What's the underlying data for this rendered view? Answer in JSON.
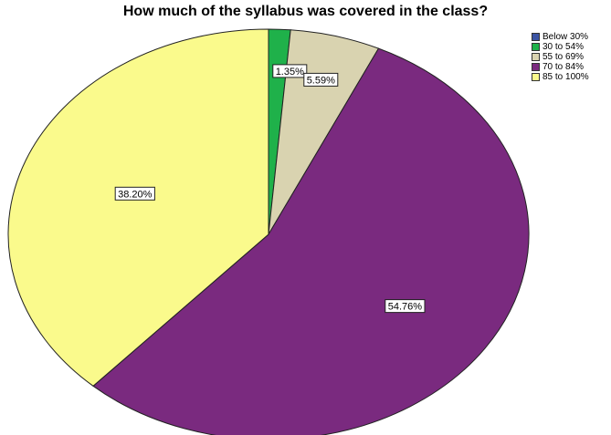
{
  "chart_data": {
    "type": "pie",
    "title": "How much of the syllabus was covered in the class?",
    "categories": [
      "Below 30%",
      "30 to 54%",
      "55 to 69%",
      "70 to 84%",
      "85 to 100%"
    ],
    "values": [
      0,
      1.35,
      5.59,
      54.76,
      38.2
    ],
    "data_labels": [
      "",
      "1.35%",
      "5.59%",
      "54.76%",
      "38.20%"
    ],
    "colors": [
      "#3b54a4",
      "#1fb14a",
      "#d9d3b0",
      "#7a2a7f",
      "#fafa8c"
    ],
    "start_angle": "12 o'clock",
    "direction": "clockwise",
    "legend_position": "top-right"
  }
}
